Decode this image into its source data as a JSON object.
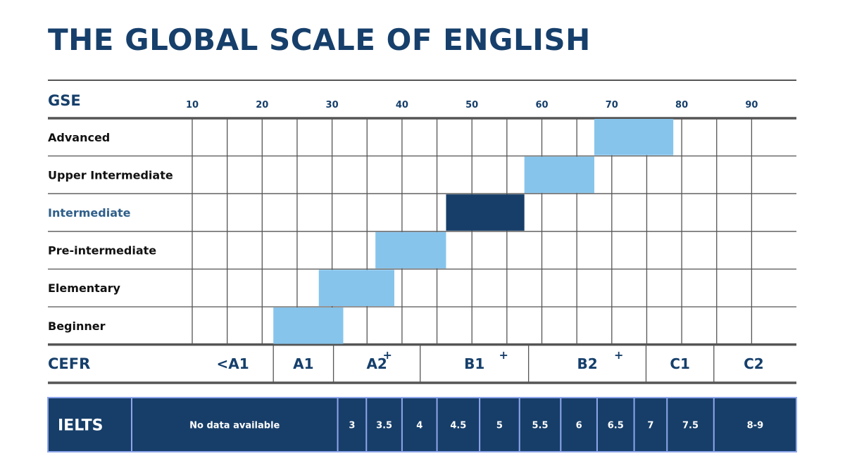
{
  "page": {
    "title": "THE GLOBAL SCALE OF ENGLISH"
  },
  "chart_data": {
    "type": "bar",
    "orientation": "horizontal-range",
    "x_axis_label": "GSE",
    "x_ticks": [
      10,
      20,
      30,
      40,
      50,
      60,
      70,
      80,
      90
    ],
    "xlim": [
      10,
      96
    ],
    "grid": true,
    "categories": [
      "Advanced",
      "Upper Intermediate",
      "Intermediate",
      "Pre-intermediate",
      "Elementary",
      "Beginner"
    ],
    "ranges": [
      {
        "level": "Advanced",
        "start": 67.5,
        "end": 78.8,
        "highlight": false
      },
      {
        "level": "Upper Intermediate",
        "start": 57.5,
        "end": 67.5,
        "highlight": false
      },
      {
        "level": "Intermediate",
        "start": 46.3,
        "end": 57.5,
        "highlight": true
      },
      {
        "level": "Pre-intermediate",
        "start": 36.2,
        "end": 46.3,
        "highlight": false
      },
      {
        "level": "Elementary",
        "start": 28.1,
        "end": 38.9,
        "highlight": false
      },
      {
        "level": "Beginner",
        "start": 21.6,
        "end": 31.6,
        "highlight": false
      }
    ],
    "cefr": {
      "label": "CEFR",
      "bands": [
        {
          "name": "<A1",
          "start": 10,
          "end": 21.6,
          "plus": false
        },
        {
          "name": "A1",
          "start": 21.6,
          "end": 30.2,
          "plus": false
        },
        {
          "name": "A2",
          "start": 30.2,
          "end": 42.6,
          "plus": true
        },
        {
          "name": "B1",
          "start": 42.6,
          "end": 58.1,
          "plus": true
        },
        {
          "name": "B2",
          "start": 58.1,
          "end": 74.9,
          "plus": true
        },
        {
          "name": "C1",
          "start": 74.9,
          "end": 84.6,
          "plus": false
        },
        {
          "name": "C2",
          "start": 84.6,
          "end": 96,
          "plus": false
        }
      ],
      "plus_symbol": "+"
    },
    "ielts": {
      "label": "IELTS",
      "cells": [
        {
          "text": "No data available",
          "start": 10,
          "end": 30.8
        },
        {
          "text": "3",
          "start": 30.8,
          "end": 34.9
        },
        {
          "text": "3.5",
          "start": 34.9,
          "end": 40.0
        },
        {
          "text": "4",
          "start": 40.0,
          "end": 45.0
        },
        {
          "text": "4.5",
          "start": 45.0,
          "end": 51.1
        },
        {
          "text": "5",
          "start": 51.1,
          "end": 56.8
        },
        {
          "text": "5.5",
          "start": 56.8,
          "end": 62.7
        },
        {
          "text": "6",
          "start": 62.7,
          "end": 67.9
        },
        {
          "text": "6.5",
          "start": 67.9,
          "end": 73.2
        },
        {
          "text": "7",
          "start": 73.2,
          "end": 77.9
        },
        {
          "text": "7.5",
          "start": 77.9,
          "end": 84.6
        },
        {
          "text": "8-9",
          "start": 84.6,
          "end": 96
        }
      ]
    },
    "colors": {
      "bar": "#86c4ec",
      "highlight": "#173e69",
      "text": "#163f6b",
      "ielts_bg": "#173e69",
      "ielts_border": "#8ea6ec",
      "grid": "#555555"
    }
  }
}
